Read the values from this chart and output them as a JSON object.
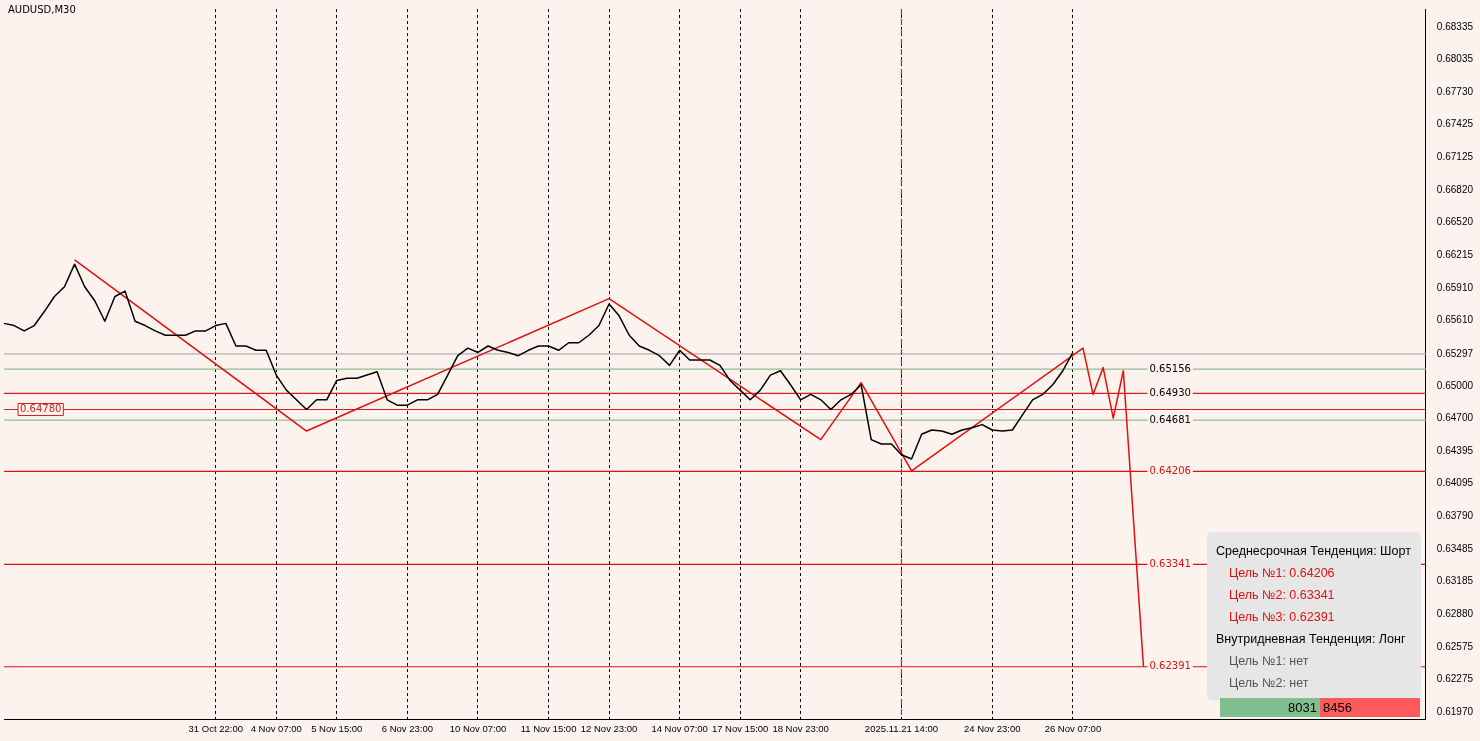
{
  "chart_data": {
    "type": "line",
    "title": "AUDUSD,M30",
    "categories": [
      null,
      null,
      null,
      null,
      null,
      null,
      null,
      null,
      null,
      null,
      null,
      null,
      null,
      null,
      null,
      null,
      null,
      null,
      null,
      null,
      null,
      "31 Oct 22:00",
      null,
      null,
      null,
      null,
      null,
      "4 Nov 07:00",
      null,
      null,
      null,
      null,
      null,
      "5 Nov 15:00",
      null,
      null,
      null,
      null,
      null,
      null,
      "6 Nov 23:00",
      null,
      null,
      null,
      null,
      null,
      null,
      "10 Nov 07:00",
      null,
      null,
      null,
      null,
      null,
      null,
      "11 Nov 15:00",
      null,
      null,
      null,
      null,
      null,
      "12 Nov 23:00",
      null,
      null,
      null,
      null,
      null,
      null,
      "14 Nov 07:00",
      null,
      null,
      null,
      null,
      null,
      "17 Nov 15:00",
      null,
      null,
      null,
      null,
      null,
      "18 Nov 23:00",
      null,
      null,
      null,
      null,
      null,
      null,
      null,
      null,
      null,
      "2025.11.21 14:00",
      null,
      null,
      null,
      null,
      null,
      null,
      null,
      null,
      "24 Nov 23:00",
      null,
      null,
      null,
      null,
      null,
      null,
      null,
      "26 Nov 07:00",
      null,
      null,
      null,
      null,
      null,
      null,
      null,
      null,
      null,
      null,
      null,
      null,
      null,
      null,
      null,
      null,
      null,
      null,
      null,
      null,
      null,
      null,
      null,
      null,
      null,
      null,
      null,
      null,
      null,
      null,
      null,
      null,
      null,
      null,
      null
    ],
    "series": [
      {
        "color": "#000000",
        "values": [
          0.6558,
          0.6556,
          0.6551,
          0.6556,
          0.6569,
          0.6583,
          0.6592,
          0.6613,
          0.6592,
          0.6579,
          0.656,
          0.6583,
          0.6588,
          0.656,
          0.6556,
          0.6551,
          0.6547,
          0.6547,
          0.6547,
          0.6551,
          0.6551,
          0.6556,
          0.6558,
          0.6537,
          0.6537,
          0.6533,
          0.6533,
          0.651,
          0.6496,
          0.6487,
          0.6478,
          0.6487,
          0.6487,
          0.6505,
          0.6507,
          0.6507,
          0.651,
          0.6513,
          0.6487,
          0.6482,
          0.6482,
          0.6487,
          0.6487,
          0.6492,
          0.651,
          0.6528,
          0.6535,
          0.6531,
          0.6537,
          0.6533,
          0.6531,
          0.6528,
          0.6533,
          0.6537,
          0.6537,
          0.6533,
          0.654,
          0.654,
          0.6547,
          0.6556,
          0.6576,
          0.6565,
          0.6547,
          0.6537,
          0.6533,
          0.6528,
          0.6519,
          0.6533,
          0.6524,
          0.6524,
          0.6524,
          0.6519,
          0.6505,
          0.6496,
          0.6487,
          0.6496,
          0.651,
          0.6514,
          0.6501,
          0.6487,
          0.6492,
          0.6487,
          0.6478,
          0.6487,
          0.6492,
          0.6501,
          0.645,
          0.6446,
          0.6446,
          0.6436,
          0.6432,
          0.6455,
          0.6459,
          0.6458,
          0.6455,
          0.6459,
          0.6461,
          0.6464,
          0.6459,
          0.6458,
          0.6459,
          0.6473,
          0.6487,
          0.6492,
          0.6501,
          0.6514,
          0.6531,
          null,
          null,
          null,
          null,
          null,
          null,
          null,
          null,
          null,
          null,
          null,
          null,
          null,
          null,
          null,
          null,
          null,
          null,
          null,
          null,
          null,
          null,
          null,
          null,
          null,
          null,
          null,
          null,
          null,
          null,
          null,
          null,
          null,
          null,
          null
        ]
      },
      {
        "color": "#e01010",
        "values": [
          null,
          null,
          null,
          null,
          null,
          null,
          null,
          0.6617,
          null,
          null,
          null,
          null,
          null,
          null,
          null,
          null,
          null,
          null,
          null,
          null,
          null,
          null,
          null,
          null,
          null,
          null,
          null,
          null,
          null,
          null,
          0.6458,
          null,
          null,
          null,
          null,
          null,
          null,
          null,
          null,
          null,
          null,
          null,
          null,
          null,
          null,
          null,
          null,
          null,
          null,
          null,
          null,
          null,
          null,
          null,
          null,
          null,
          null,
          null,
          null,
          null,
          0.6581,
          null,
          null,
          null,
          null,
          null,
          null,
          null,
          null,
          null,
          null,
          null,
          null,
          null,
          null,
          null,
          null,
          null,
          null,
          null,
          null,
          0.645,
          null,
          null,
          null,
          0.6503,
          null,
          null,
          null,
          null,
          0.6421,
          null,
          null,
          null,
          null,
          null,
          null,
          null,
          null,
          null,
          null,
          null,
          null,
          null,
          null,
          null,
          null,
          0.6535,
          0.6492,
          0.6517,
          0.647,
          0.6514,
          null,
          0.6239,
          null,
          null,
          null,
          null,
          null,
          null,
          null,
          null,
          null,
          null,
          null,
          null,
          null,
          null,
          null,
          null,
          null,
          null,
          null,
          null,
          null,
          null,
          null,
          null,
          null,
          null,
          null,
          null
        ]
      }
    ],
    "ylim": [
      0.619,
      0.685
    ],
    "yticks": [
      0.68335,
      0.68035,
      {
        "value": 0.6773,
        "label": "0.67730"
      },
      0.67425,
      0.67125,
      {
        "value": 0.6682,
        "label": "0.66820"
      },
      {
        "value": 0.6652,
        "label": "0.66520"
      },
      0.66215,
      {
        "value": 0.6591,
        "label": "0.65910"
      },
      {
        "value": 0.6561,
        "label": "0.65610"
      },
      0.65297,
      {
        "value": 0.65,
        "label": "0.65000"
      },
      {
        "value": 0.647,
        "label": "0.64700"
      },
      0.64395,
      0.64095,
      {
        "value": 0.6379,
        "label": "0.63790"
      },
      0.63485,
      0.63185,
      {
        "value": 0.6288,
        "label": "0.62880"
      },
      0.62575,
      0.62275,
      {
        "value": 0.6197,
        "label": "0.61970"
      }
    ],
    "ref_lines": [
      {
        "axis": "y",
        "value": 0.65297,
        "color": "#b0b0b0"
      },
      {
        "axis": "y",
        "value": 0.65156,
        "label": "0.65156",
        "color": "#8fbc8f"
      },
      {
        "axis": "y",
        "value": 0.64681,
        "label": "0.64681",
        "color": "#8fbc8f"
      },
      {
        "axis": "y",
        "value": 0.64206,
        "label": "0.64206",
        "color": "#e01010"
      },
      {
        "axis": "y",
        "value": 0.63341,
        "label": "0.63341",
        "color": "#e01010"
      },
      {
        "axis": "y",
        "value": 0.62391,
        "label": "0.62391",
        "color": "#e01010"
      },
      {
        "axis": "y",
        "value": 0.6493,
        "label": "0.64930",
        "color": "#d02020"
      },
      {
        "axis": "y",
        "value": 0.6478,
        "label": "0.64780",
        "color": "#d02020"
      },
      {
        "axis": "x",
        "value": "2025.11.21 14:00",
        "color": "#d02020",
        "line_style": "dashed"
      }
    ],
    "annotations": [
      "Среднесрочная Тенденция: Шорт",
      "Цель №1: 0.64206",
      "Цель №2: 0.63341",
      "Цель №3: 0.62391",
      "Внутридневная Тенденция: Лонг",
      "Цель №1: нет",
      "Цель №2: нет",
      "8031",
      "8456"
    ],
    "grid": "x",
    "legend": false,
    "marker": "none",
    "line_style": "solid"
  }
}
